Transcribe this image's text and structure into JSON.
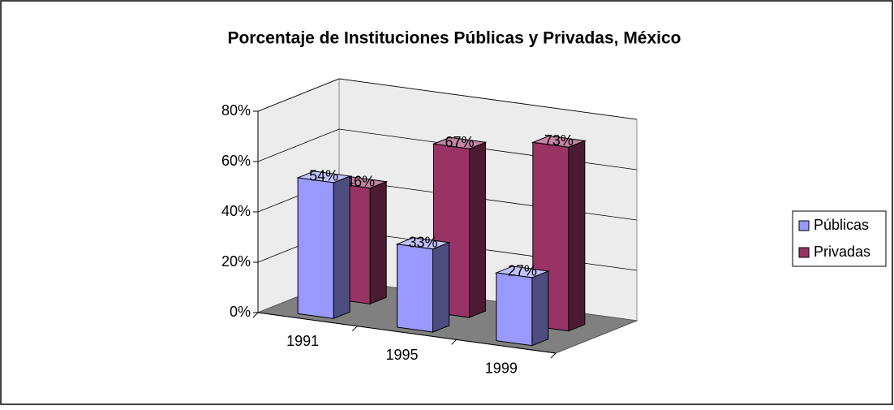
{
  "chart_data": {
    "type": "bar3d",
    "title": "Porcentaje de Instituciones Públicas y Privadas, México",
    "categories": [
      "1991",
      "1995",
      "1999"
    ],
    "series": [
      {
        "name": "Públicas",
        "color": "#9999ff",
        "values": [
          54,
          33,
          27
        ],
        "value_labels": [
          "54%",
          "33%",
          "27%"
        ]
      },
      {
        "name": "Privadas",
        "color": "#993366",
        "values": [
          46,
          67,
          73
        ],
        "value_labels": [
          "46%",
          "67%",
          "73%"
        ]
      }
    ],
    "ylim": [
      0,
      80
    ],
    "yticks": [
      {
        "value": 0,
        "label": "0%"
      },
      {
        "value": 20,
        "label": "20%"
      },
      {
        "value": 40,
        "label": "40%"
      },
      {
        "value": 60,
        "label": "60%"
      },
      {
        "value": 80,
        "label": "80%"
      }
    ],
    "grid": true,
    "legend": "right"
  }
}
